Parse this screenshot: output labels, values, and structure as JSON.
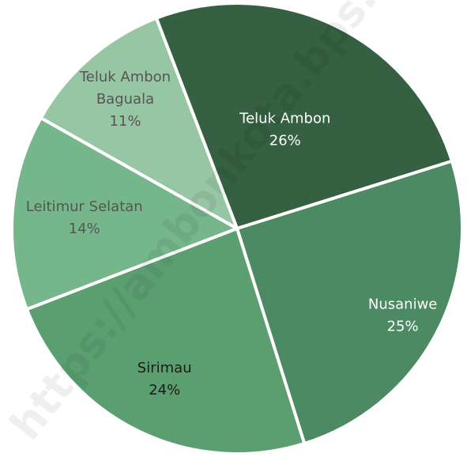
{
  "watermark": "https://ambonkota.bps.go.id",
  "chart_data": {
    "type": "pie",
    "slices": [
      {
        "label": [
          "Teluk Ambon"
        ],
        "pct_label": "26%",
        "value": 26,
        "color": "#356142",
        "text_color": "#ffffff"
      },
      {
        "label": [
          "Nusaniwe"
        ],
        "pct_label": "25%",
        "value": 25,
        "color": "#4b8a62",
        "text_color": "#ffffff"
      },
      {
        "label": [
          "Sirimau"
        ],
        "pct_label": "24%",
        "value": 24,
        "color": "#5b9f71",
        "text_color": "#1a1a1a"
      },
      {
        "label": [
          "Leitimur Selatan"
        ],
        "pct_label": "14%",
        "value": 14,
        "color": "#75b68b",
        "text_color": "#555555"
      },
      {
        "label": [
          "Teluk Ambon",
          "Baguala"
        ],
        "pct_label": "11%",
        "value": 11,
        "color": "#97c6a5",
        "text_color": "#555555"
      }
    ]
  }
}
